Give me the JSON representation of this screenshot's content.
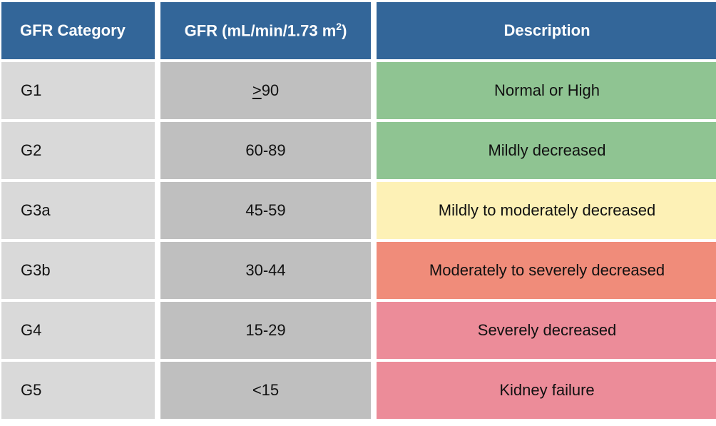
{
  "table": {
    "headers": {
      "category": "GFR Category",
      "gfr_prefix": "GFR (mL/min/1.73 m",
      "gfr_sup": "2",
      "gfr_suffix": ")",
      "description": "Description"
    },
    "rows": [
      {
        "category": "G1",
        "gfr_symbol": ">",
        "gfr": "90",
        "description": "Normal or High",
        "color": "#8fc492"
      },
      {
        "category": "G2",
        "gfr_symbol": "",
        "gfr": "60-89",
        "description": "Mildly decreased",
        "color": "#8fc492"
      },
      {
        "category": "G3a",
        "gfr_symbol": "",
        "gfr": "45-59",
        "description": "Mildly to moderately decreased",
        "color": "#fdf1b6"
      },
      {
        "category": "G3b",
        "gfr_symbol": "",
        "gfr": "30-44",
        "description": "Moderately to severely decreased",
        "color": "#f08c7a"
      },
      {
        "category": "G4",
        "gfr_symbol": "",
        "gfr": "15-29",
        "description": "Severely decreased",
        "color": "#ec8c99"
      },
      {
        "category": "G5",
        "gfr_symbol": "",
        "gfr": "<15",
        "description": "Kidney failure",
        "color": "#ec8c99"
      }
    ]
  }
}
